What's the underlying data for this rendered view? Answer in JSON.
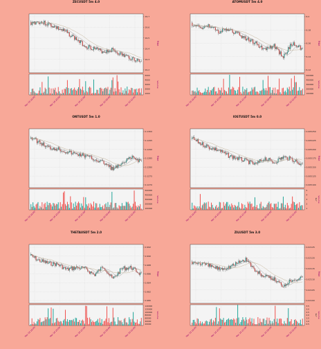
{
  "colors": {
    "background": "#f8a898",
    "panel": "#f4f4f4",
    "grid": "#cfcfcf",
    "up": "#26a69a",
    "down": "#ef5350",
    "ma_short": "#8b8b8b",
    "ma_long": "#c4b49a",
    "axis_label": "#9b006e"
  },
  "chart_data": [
    {
      "type": "candlestick",
      "title": "ZECUSDT 5m 4.0",
      "ylabel": "Price",
      "volume_label": "Volume",
      "price_ticks": [
        "19.7",
        "19.6",
        "19.5",
        "19.4",
        "19.3",
        "19.2"
      ],
      "volume_ticks": [
        "5000",
        "4000",
        "3000",
        "2000",
        "1000"
      ],
      "x_ticks": [
        "Mar 19 18:00",
        "Mar 19 20:00",
        "Mar 19 22:00",
        "Mar 20 00:00",
        "Mar 20 02:00"
      ],
      "trend": [
        0.12,
        0.1,
        0.14,
        0.22,
        0.3,
        0.42,
        0.55,
        0.6,
        0.66,
        0.62,
        0.72,
        0.78,
        0.84
      ],
      "grid": true
    },
    {
      "type": "candlestick",
      "title": "ATOMUSDT 5m 4.0",
      "ylabel": "Price",
      "volume_label": "Volume",
      "price_ticks": [
        "6.2",
        "6.18",
        "6.16",
        "6.14",
        "6.12"
      ],
      "volume_ticks": [
        "500000",
        "400000",
        "300000",
        "200000",
        "100000"
      ],
      "x_ticks": [
        "Mar 19 18:00",
        "Mar 19 20:00",
        "Mar 19 22:00",
        "Mar 20 00:00",
        "Mar 20 02:00"
      ],
      "trend": [
        0.15,
        0.2,
        0.18,
        0.28,
        0.25,
        0.32,
        0.42,
        0.5,
        0.62,
        0.55,
        0.75,
        0.5,
        0.6
      ],
      "grid": true
    },
    {
      "type": "candlestick",
      "title": "ONTUSDT 5m 1.0",
      "ylabel": "Price",
      "volume_label": "Volume",
      "price_ticks": [
        "0.1300",
        "0.1295",
        "0.1290",
        "0.1285",
        "0.1280",
        "0.1275",
        "0.1270"
      ],
      "volume_ticks": [
        "500000",
        "400000",
        "300000",
        "200000",
        "100000"
      ],
      "x_ticks": [
        "Mar 19 18:00",
        "Mar 19 20:00",
        "Mar 19 22:00",
        "Mar 20 00:00",
        "Mar 20 02:00"
      ],
      "trend": [
        0.1,
        0.2,
        0.3,
        0.32,
        0.38,
        0.42,
        0.45,
        0.52,
        0.58,
        0.7,
        0.62,
        0.48,
        0.55
      ],
      "grid": true
    },
    {
      "type": "candlestick",
      "title": "IOSTUSDT 5m 0.0",
      "ylabel": "Price",
      "volume_label": "Volume",
      "price_ticks": [
        "0.005250",
        "0.005225",
        "0.005200",
        "0.005175",
        "0.005150",
        "0.005125",
        "0.005100"
      ],
      "volume_ticks": [
        "5",
        "4",
        "3",
        "2",
        "1"
      ],
      "volume_multiplier": "1e7",
      "x_ticks": [
        "Mar 19 18:00",
        "Mar 19 20:00",
        "Mar 19 22:00",
        "Mar 20 00:00",
        "Mar 20 02:00"
      ],
      "trend": [
        0.12,
        0.22,
        0.3,
        0.35,
        0.45,
        0.5,
        0.55,
        0.62,
        0.5,
        0.58,
        0.48,
        0.52,
        0.62
      ],
      "grid": true
    },
    {
      "type": "candlestick",
      "title": "THETAUSDT 5m 2.0",
      "ylabel": "Price",
      "volume_label": "Volume",
      "price_ticks": [
        "0.992",
        "0.990",
        "0.988",
        "0.986",
        "0.984",
        "0.982",
        "0.980"
      ],
      "volume_ticks": [
        "140000",
        "120000",
        "100000",
        "80000",
        "60000",
        "40000",
        "20000"
      ],
      "x_ticks": [
        "Mar 19 18:00",
        "Mar 19 20:00",
        "Mar 19 22:00",
        "Mar 20 00:00",
        "Mar 20 02:00"
      ],
      "trend": [
        0.15,
        0.25,
        0.3,
        0.32,
        0.42,
        0.38,
        0.4,
        0.52,
        0.36,
        0.6,
        0.4,
        0.38,
        0.5
      ],
      "grid": true
    },
    {
      "type": "candlestick",
      "title": "ZILUSDT 5m 3.0",
      "ylabel": "Price",
      "volume_label": "Volume",
      "price_ticks": [
        "0.02125",
        "0.02120",
        "0.02115",
        "0.02110",
        "0.02105",
        "0.02100"
      ],
      "volume_ticks": [
        "3.5",
        "3.0",
        "2.5",
        "2.0",
        "1.5",
        "1.0",
        "0.5"
      ],
      "volume_multiplier": "1e7",
      "x_ticks": [
        "Mar 19 18:00",
        "Mar 19 20:00",
        "Mar 19 22:00",
        "Mar 20 00:00",
        "Mar 20 02:00"
      ],
      "trend": [
        0.28,
        0.3,
        0.35,
        0.4,
        0.38,
        0.3,
        0.22,
        0.45,
        0.55,
        0.6,
        0.72,
        0.6,
        0.58
      ],
      "grid": true
    }
  ]
}
